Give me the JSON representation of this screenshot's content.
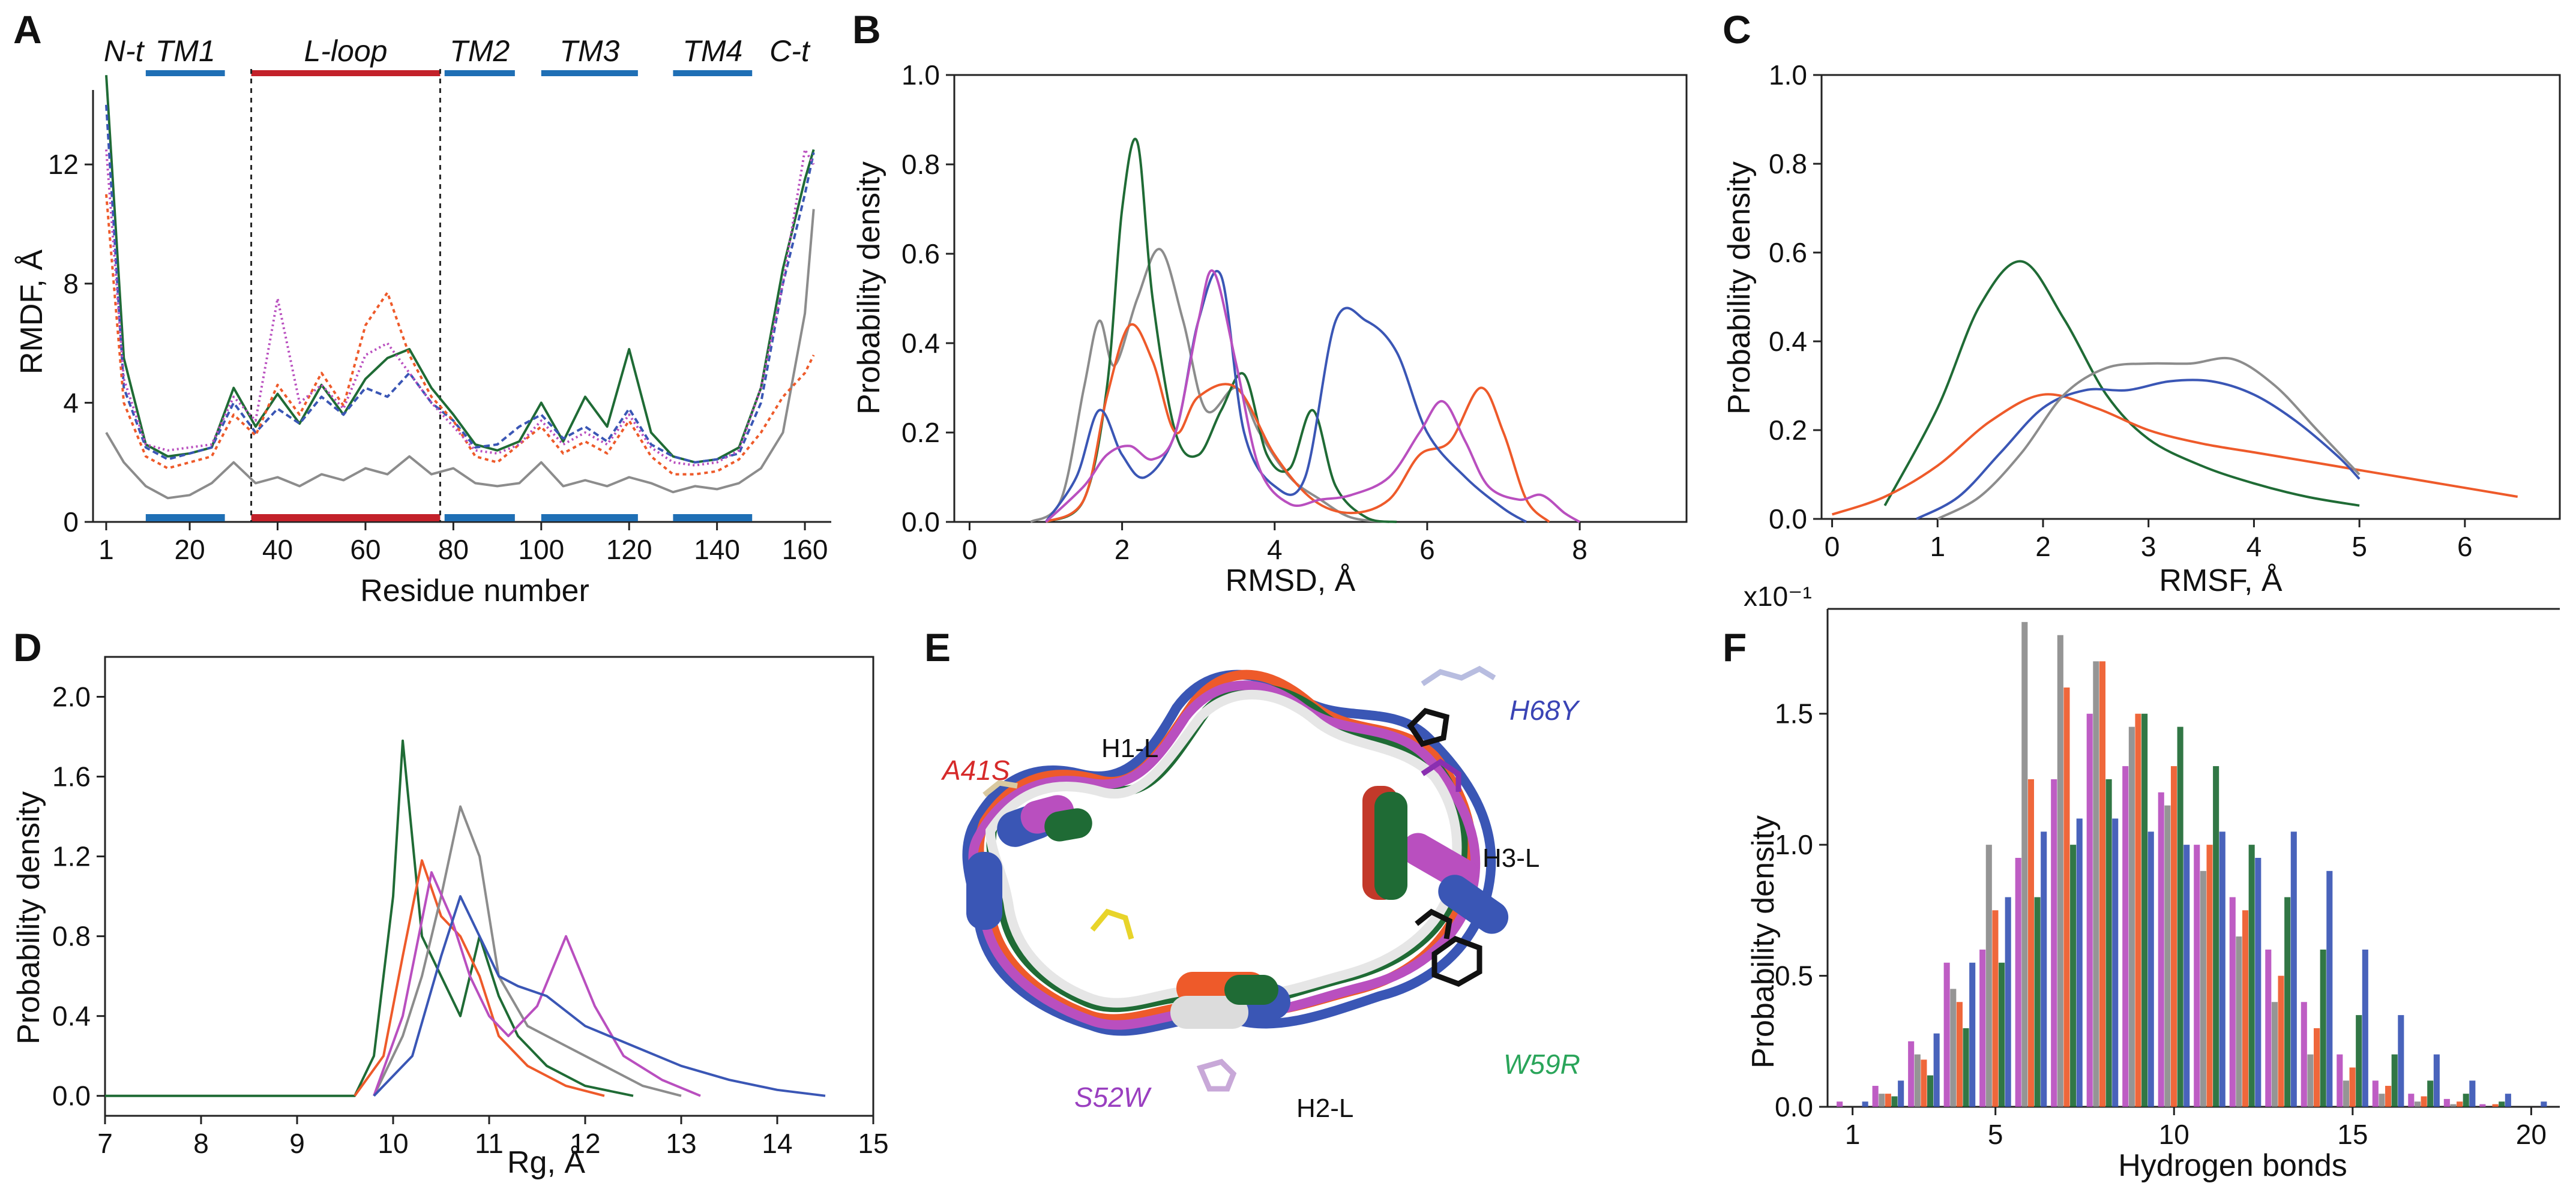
{
  "colors": {
    "gray": "#8c8c8c",
    "green": "#1f6b35",
    "red": "#ee5a2a",
    "blue": "#3a56b5",
    "magenta": "#b94fbf",
    "tmBar": "#1f6fb5",
    "loopBar": "#c3212a"
  },
  "chart_data": [
    {
      "panel": "A",
      "type": "line",
      "xlabel": "Residue number",
      "ylabel": "RMDF, Å",
      "xlim": [
        -2,
        166
      ],
      "ylim": [
        0,
        14.5
      ],
      "xticks": [
        "1",
        "20",
        "40",
        "60",
        "80",
        "100",
        "120",
        "140",
        "160"
      ],
      "yticks": [
        "0",
        "4",
        "8",
        "12"
      ],
      "regions": [
        {
          "label": "N-t",
          "start": 1,
          "end": 9
        },
        {
          "label": "TM1",
          "start": 10,
          "end": 28
        },
        {
          "label": "L-loop",
          "start": 34,
          "end": 77
        },
        {
          "label": "TM2",
          "start": 78,
          "end": 94
        },
        {
          "label": "TM3",
          "start": 100,
          "end": 122
        },
        {
          "label": "TM4",
          "start": 130,
          "end": 148
        },
        {
          "label": "C-t",
          "start": 151,
          "end": 162
        }
      ],
      "x": [
        1,
        5,
        10,
        15,
        20,
        25,
        30,
        35,
        40,
        45,
        50,
        55,
        60,
        65,
        70,
        75,
        80,
        85,
        90,
        95,
        100,
        105,
        110,
        115,
        120,
        125,
        130,
        135,
        140,
        145,
        150,
        155,
        160,
        162
      ],
      "series": [
        {
          "name": "gray",
          "values": [
            3.0,
            2.0,
            1.2,
            0.8,
            0.9,
            1.3,
            2.0,
            1.3,
            1.5,
            1.2,
            1.6,
            1.4,
            1.8,
            1.6,
            2.2,
            1.6,
            1.8,
            1.3,
            1.2,
            1.3,
            2.0,
            1.2,
            1.4,
            1.2,
            1.5,
            1.3,
            1.0,
            1.2,
            1.1,
            1.3,
            1.8,
            3.0,
            7.0,
            10.5
          ]
        },
        {
          "name": "green",
          "values": [
            15.0,
            5.5,
            2.6,
            2.2,
            2.3,
            2.5,
            4.5,
            3.2,
            4.3,
            3.3,
            4.6,
            3.6,
            4.8,
            5.5,
            5.8,
            4.5,
            3.6,
            2.6,
            2.4,
            2.7,
            4.0,
            2.7,
            4.2,
            3.2,
            5.8,
            3.0,
            2.2,
            2.0,
            2.1,
            2.5,
            4.5,
            8.5,
            11.5,
            12.5
          ]
        },
        {
          "name": "blue",
          "values": [
            14.0,
            4.5,
            2.5,
            2.1,
            2.3,
            2.5,
            4.0,
            3.0,
            3.8,
            3.3,
            4.2,
            3.6,
            4.5,
            4.2,
            5.0,
            4.0,
            3.4,
            2.5,
            2.6,
            3.2,
            3.6,
            2.8,
            3.2,
            2.7,
            3.8,
            2.6,
            2.2,
            2.0,
            2.1,
            2.3,
            4.0,
            8.0,
            11.0,
            12.4
          ]
        },
        {
          "name": "red",
          "values": [
            11.0,
            4.0,
            2.2,
            1.8,
            2.0,
            2.2,
            3.6,
            2.9,
            4.6,
            3.6,
            5.0,
            3.9,
            6.6,
            7.7,
            5.6,
            4.2,
            3.4,
            2.2,
            2.0,
            2.6,
            3.2,
            2.3,
            2.7,
            2.3,
            3.4,
            2.2,
            1.6,
            1.6,
            1.7,
            2.1,
            3.0,
            4.2,
            5.0,
            5.6
          ]
        },
        {
          "name": "magenta",
          "values": [
            12.5,
            4.8,
            2.6,
            2.4,
            2.5,
            2.6,
            4.2,
            3.4,
            7.5,
            4.0,
            4.6,
            3.8,
            5.6,
            6.0,
            5.0,
            4.0,
            3.2,
            2.4,
            2.3,
            2.6,
            3.4,
            2.6,
            3.0,
            2.6,
            3.6,
            2.5,
            2.0,
            1.9,
            2.0,
            2.4,
            4.5,
            8.0,
            12.5,
            12.0
          ]
        }
      ]
    },
    {
      "panel": "B",
      "type": "line",
      "xlabel": "RMSD, Å",
      "ylabel": "Probability density",
      "xlim": [
        -0.2,
        9.4
      ],
      "ylim": [
        0,
        1.0
      ],
      "xticks": [
        "0",
        "2",
        "4",
        "6",
        "8"
      ],
      "yticks": [
        "0.0",
        "0.2",
        "0.4",
        "0.6",
        "0.8",
        "1.0"
      ],
      "series": [
        {
          "name": "gray",
          "x": [
            0.8,
            1.2,
            1.5,
            1.7,
            1.9,
            2.2,
            2.5,
            2.8,
            3.1,
            3.5,
            3.8,
            4.2,
            4.6,
            5.0,
            5.5
          ],
          "values": [
            0,
            0.05,
            0.3,
            0.45,
            0.35,
            0.5,
            0.61,
            0.45,
            0.25,
            0.3,
            0.2,
            0.1,
            0.05,
            0.01,
            0
          ]
        },
        {
          "name": "green",
          "x": [
            1.0,
            1.5,
            1.8,
            2.0,
            2.2,
            2.4,
            2.7,
            3.0,
            3.3,
            3.6,
            3.9,
            4.2,
            4.5,
            4.8,
            5.2,
            5.6
          ],
          "values": [
            0,
            0.05,
            0.3,
            0.7,
            0.85,
            0.5,
            0.2,
            0.15,
            0.25,
            0.33,
            0.15,
            0.12,
            0.25,
            0.08,
            0.01,
            0
          ]
        },
        {
          "name": "red",
          "x": [
            1.0,
            1.5,
            1.8,
            2.1,
            2.4,
            2.7,
            3.0,
            3.5,
            4.0,
            4.5,
            5.0,
            5.5,
            5.9,
            6.3,
            6.7,
            7.0,
            7.3,
            7.6
          ],
          "values": [
            0,
            0.05,
            0.28,
            0.44,
            0.36,
            0.2,
            0.28,
            0.3,
            0.15,
            0.05,
            0.02,
            0.05,
            0.15,
            0.18,
            0.3,
            0.2,
            0.05,
            0
          ]
        },
        {
          "name": "blue",
          "x": [
            1.0,
            1.4,
            1.7,
            2.0,
            2.3,
            2.7,
            3.0,
            3.3,
            3.6,
            4.0,
            4.4,
            4.8,
            5.2,
            5.6,
            6.0,
            6.5,
            7.0,
            7.3
          ],
          "values": [
            0,
            0.1,
            0.25,
            0.15,
            0.1,
            0.2,
            0.45,
            0.55,
            0.2,
            0.08,
            0.1,
            0.45,
            0.45,
            0.38,
            0.2,
            0.1,
            0.03,
            0
          ]
        },
        {
          "name": "magenta",
          "x": [
            1.0,
            1.5,
            1.8,
            2.1,
            2.4,
            2.7,
            3.0,
            3.2,
            3.5,
            3.8,
            4.2,
            4.6,
            5.0,
            5.5,
            5.9,
            6.2,
            6.5,
            6.8,
            7.2,
            7.5,
            7.8,
            8.0
          ],
          "values": [
            0,
            0.08,
            0.15,
            0.17,
            0.14,
            0.2,
            0.45,
            0.56,
            0.35,
            0.12,
            0.04,
            0.05,
            0.06,
            0.1,
            0.2,
            0.27,
            0.18,
            0.08,
            0.05,
            0.06,
            0.02,
            0
          ]
        }
      ]
    },
    {
      "panel": "C",
      "type": "line",
      "xlabel": "RMSF, Å",
      "ylabel": "Probability density",
      "xlim": [
        -0.1,
        6.9
      ],
      "ylim": [
        0,
        1.0
      ],
      "xticks": [
        "0",
        "1",
        "2",
        "3",
        "4",
        "5",
        "6"
      ],
      "yticks": [
        "0.0",
        "0.2",
        "0.4",
        "0.6",
        "0.8",
        "1.0"
      ],
      "series": [
        {
          "name": "green",
          "x": [
            0.5,
            1.0,
            1.4,
            1.8,
            2.2,
            2.6,
            3.0,
            3.5,
            4.0,
            4.5,
            5.0
          ],
          "values": [
            0.03,
            0.25,
            0.48,
            0.58,
            0.45,
            0.28,
            0.18,
            0.12,
            0.08,
            0.05,
            0.03
          ]
        },
        {
          "name": "red",
          "x": [
            0.0,
            0.5,
            1.0,
            1.5,
            2.0,
            2.5,
            3.0,
            3.5,
            4.0,
            4.5,
            5.0,
            5.5,
            6.0,
            6.5
          ],
          "values": [
            0.01,
            0.05,
            0.12,
            0.22,
            0.28,
            0.25,
            0.2,
            0.17,
            0.15,
            0.13,
            0.11,
            0.09,
            0.07,
            0.05
          ]
        },
        {
          "name": "blue",
          "x": [
            0.8,
            1.2,
            1.6,
            2.0,
            2.4,
            2.8,
            3.2,
            3.6,
            4.0,
            4.4,
            4.8,
            5.0
          ],
          "values": [
            0,
            0.05,
            0.15,
            0.25,
            0.29,
            0.29,
            0.31,
            0.31,
            0.28,
            0.22,
            0.14,
            0.09
          ]
        },
        {
          "name": "gray",
          "x": [
            1.0,
            1.4,
            1.8,
            2.2,
            2.6,
            3.0,
            3.4,
            3.8,
            4.2,
            4.6,
            5.0
          ],
          "values": [
            0,
            0.05,
            0.15,
            0.28,
            0.34,
            0.35,
            0.35,
            0.36,
            0.3,
            0.2,
            0.1
          ]
        }
      ]
    },
    {
      "panel": "D",
      "type": "line",
      "xlabel": "Rg, Å",
      "ylabel": "Probability density",
      "xlim": [
        7.0,
        15.0
      ],
      "ylim": [
        -0.1,
        2.2
      ],
      "xticks": [
        "7",
        "8",
        "9",
        "10",
        "11",
        "12",
        "13",
        "14",
        "15"
      ],
      "yticks": [
        "0.0",
        "0.4",
        "0.8",
        "1.2",
        "1.6",
        "2.0"
      ],
      "series": [
        {
          "name": "green",
          "x": [
            7.0,
            9.6,
            9.8,
            10.0,
            10.1,
            10.3,
            10.5,
            10.7,
            10.9,
            11.1,
            11.3,
            11.6,
            12.0,
            12.5
          ],
          "values": [
            0,
            0,
            0.2,
            1.0,
            1.78,
            0.8,
            0.6,
            0.4,
            0.8,
            0.5,
            0.3,
            0.15,
            0.05,
            0
          ]
        },
        {
          "name": "red",
          "x": [
            9.6,
            9.9,
            10.1,
            10.3,
            10.5,
            10.7,
            10.9,
            11.1,
            11.4,
            11.8,
            12.2
          ],
          "values": [
            0,
            0.2,
            0.7,
            1.18,
            0.9,
            0.8,
            0.6,
            0.3,
            0.15,
            0.05,
            0
          ]
        },
        {
          "name": "gray",
          "x": [
            9.8,
            10.1,
            10.3,
            10.5,
            10.7,
            10.9,
            11.1,
            11.4,
            11.8,
            12.2,
            12.6,
            13.0
          ],
          "values": [
            0,
            0.3,
            0.6,
            1.0,
            1.45,
            1.2,
            0.6,
            0.35,
            0.25,
            0.15,
            0.05,
            0
          ]
        },
        {
          "name": "magenta",
          "x": [
            9.8,
            10.1,
            10.4,
            10.6,
            10.8,
            11.0,
            11.2,
            11.5,
            11.8,
            12.1,
            12.4,
            12.8,
            13.2
          ],
          "values": [
            0,
            0.4,
            1.12,
            0.9,
            0.6,
            0.4,
            0.3,
            0.45,
            0.8,
            0.45,
            0.2,
            0.08,
            0
          ]
        },
        {
          "name": "blue",
          "x": [
            9.8,
            10.2,
            10.5,
            10.7,
            10.9,
            11.1,
            11.3,
            11.6,
            12.0,
            12.5,
            13.0,
            13.5,
            14.0,
            14.5
          ],
          "values": [
            0,
            0.2,
            0.7,
            1.0,
            0.8,
            0.6,
            0.55,
            0.5,
            0.35,
            0.25,
            0.15,
            0.08,
            0.03,
            0
          ]
        }
      ]
    },
    {
      "panel": "F",
      "type": "bar",
      "xlabel": "Hydrogen bonds",
      "ylabel": "Probability density",
      "scale_label": "x10⁻¹",
      "xlim": [
        0.3,
        20.8
      ],
      "ylim": [
        0,
        1.9
      ],
      "xticks": [
        "1",
        "5",
        "10",
        "15",
        "20"
      ],
      "yticks": [
        "0.0",
        "0.5",
        "1.0",
        "1.5"
      ],
      "x": [
        1,
        2,
        3,
        4,
        5,
        6,
        7,
        8,
        9,
        10,
        11,
        12,
        13,
        14,
        15,
        16,
        17,
        18,
        19,
        20
      ],
      "series": [
        {
          "name": "magenta",
          "values": [
            0.02,
            0.08,
            0.25,
            0.55,
            0.6,
            0.95,
            1.25,
            1.5,
            1.3,
            1.2,
            1.0,
            0.8,
            0.6,
            0.4,
            0.2,
            0.1,
            0.05,
            0.03,
            0.01,
            0.0
          ]
        },
        {
          "name": "gray",
          "values": [
            0.0,
            0.05,
            0.2,
            0.45,
            1.0,
            1.85,
            1.8,
            1.7,
            1.45,
            1.15,
            0.9,
            0.65,
            0.4,
            0.2,
            0.1,
            0.05,
            0.02,
            0.01,
            0.0,
            0.0
          ]
        },
        {
          "name": "red",
          "values": [
            0.0,
            0.05,
            0.18,
            0.4,
            0.75,
            1.25,
            1.6,
            1.7,
            1.5,
            1.3,
            1.0,
            0.75,
            0.5,
            0.3,
            0.15,
            0.08,
            0.04,
            0.02,
            0.01,
            0.0
          ]
        },
        {
          "name": "green",
          "values": [
            0.0,
            0.04,
            0.12,
            0.3,
            0.55,
            0.8,
            1.0,
            1.25,
            1.5,
            1.45,
            1.3,
            1.0,
            0.8,
            0.6,
            0.35,
            0.2,
            0.1,
            0.05,
            0.02,
            0.0
          ]
        },
        {
          "name": "blue",
          "values": [
            0.02,
            0.1,
            0.28,
            0.55,
            0.8,
            1.05,
            1.1,
            1.1,
            1.05,
            1.0,
            1.05,
            0.95,
            1.05,
            0.9,
            0.6,
            0.35,
            0.2,
            0.1,
            0.05,
            0.02
          ]
        }
      ]
    }
  ],
  "panels": {
    "a": {
      "letter": "A",
      "xlabel": "Residue number",
      "ylabel": "RMDF, Å"
    },
    "b": {
      "letter": "B",
      "xlabel": "RMSD, Å",
      "ylabel": "Probability density"
    },
    "c": {
      "letter": "C",
      "xlabel": "RMSF, Å",
      "ylabel": "Probability density"
    },
    "d": {
      "letter": "D",
      "xlabel": "Rg, Å",
      "ylabel": "Probability density"
    },
    "e": {
      "letter": "E"
    },
    "f": {
      "letter": "F",
      "xlabel": "Hydrogen bonds",
      "ylabel": "Probability density",
      "scale": "x10⁻¹"
    }
  },
  "structure": {
    "helices": [
      "H1-L",
      "H2-L",
      "H3-L"
    ],
    "mutations": [
      {
        "label": "A41S",
        "color": "#d62a2a"
      },
      {
        "label": "H68Y",
        "color": "#3a44b5"
      },
      {
        "label": "S52W",
        "color": "#9a3fc0"
      },
      {
        "label": "W59R",
        "color": "#2aa55a"
      }
    ]
  }
}
